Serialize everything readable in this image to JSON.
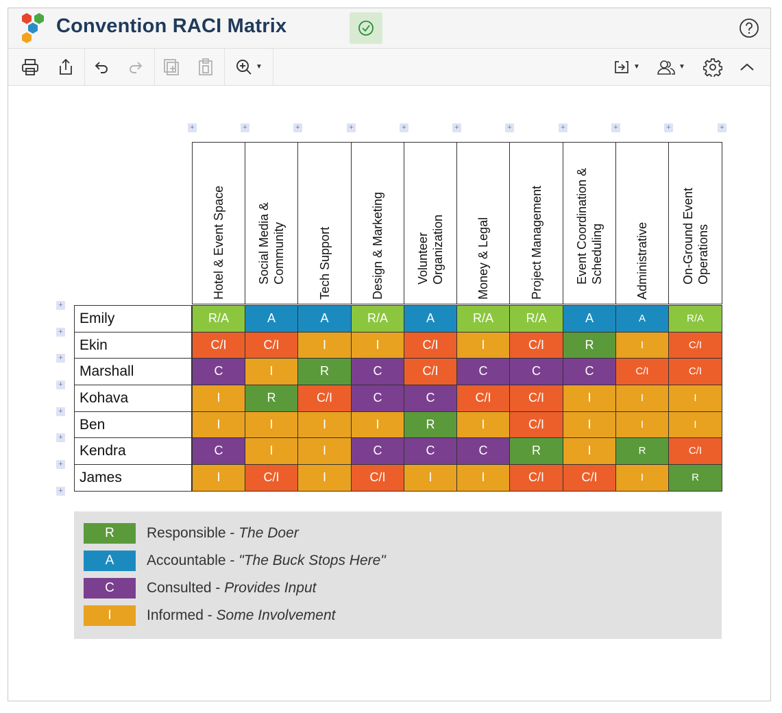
{
  "app": {
    "title": "Convention RACI Matrix"
  },
  "toolbar": {
    "items": [
      {
        "name": "print-icon"
      },
      {
        "name": "export-icon"
      },
      {
        "name": "undo-icon"
      },
      {
        "name": "redo-icon"
      },
      {
        "name": "duplicate-icon"
      },
      {
        "name": "paste-icon"
      },
      {
        "name": "zoom-in-icon"
      },
      {
        "name": "move-to-icon"
      },
      {
        "name": "share-icon"
      },
      {
        "name": "gear-icon"
      },
      {
        "name": "collapse-icon"
      }
    ]
  },
  "colors": {
    "R": "#5b9a3a",
    "A": "#1b8bbf",
    "C": "#7b3f8f",
    "I": "#e8a220",
    "C/I": "#ec5f2b",
    "R/A": "#8cc63f"
  },
  "columns": [
    {
      "line1": "Hotel & Event Space",
      "line2": ""
    },
    {
      "line1": "Social Media &",
      "line2": "Community"
    },
    {
      "line1": "Tech Support",
      "line2": ""
    },
    {
      "line1": "Design & Marketing",
      "line2": ""
    },
    {
      "line1": "Volunteer",
      "line2": "Organization"
    },
    {
      "line1": "Money & Legal",
      "line2": ""
    },
    {
      "line1": "Project Management",
      "line2": ""
    },
    {
      "line1": "Event Coordination &",
      "line2": "Scheduling"
    },
    {
      "line1": "Administrative",
      "line2": ""
    },
    {
      "line1": "On-Ground Event",
      "line2": "Operations"
    }
  ],
  "rows": [
    {
      "name": "Emily",
      "cells": [
        "R/A",
        "A",
        "A",
        "R/A",
        "A",
        "R/A",
        "R/A",
        "A",
        "A",
        "R/A"
      ]
    },
    {
      "name": "Ekin",
      "cells": [
        "C/I",
        "C/I",
        "I",
        "I",
        "C/I",
        "I",
        "C/I",
        "R",
        "I",
        "C/I"
      ]
    },
    {
      "name": "Marshall",
      "cells": [
        "C",
        "I",
        "R",
        "C",
        "C/I",
        "C",
        "C",
        "C",
        "C/I",
        "C/I"
      ]
    },
    {
      "name": "Kohava",
      "cells": [
        "I",
        "R",
        "C/I",
        "C",
        "C",
        "C/I",
        "C/I",
        "I",
        "I",
        "I"
      ]
    },
    {
      "name": "Ben",
      "cells": [
        "I",
        "I",
        "I",
        "I",
        "R",
        "I",
        "C/I",
        "I",
        "I",
        "I"
      ]
    },
    {
      "name": "Kendra",
      "cells": [
        "C",
        "I",
        "I",
        "C",
        "C",
        "C",
        "R",
        "I",
        "R",
        "C/I"
      ]
    },
    {
      "name": "James",
      "cells": [
        "I",
        "C/I",
        "I",
        "C/I",
        "I",
        "I",
        "C/I",
        "C/I",
        "I",
        "R"
      ]
    }
  ],
  "add_label": "+",
  "legend": [
    {
      "code": "R",
      "label": "Responsible - ",
      "desc": "The Doer"
    },
    {
      "code": "A",
      "label": "Accountable - ",
      "desc": "\"The Buck Stops Here\""
    },
    {
      "code": "C",
      "label": "Consulted - ",
      "desc": "Provides Input"
    },
    {
      "code": "I",
      "label": "Informed - ",
      "desc": "Some Involvement"
    }
  ]
}
